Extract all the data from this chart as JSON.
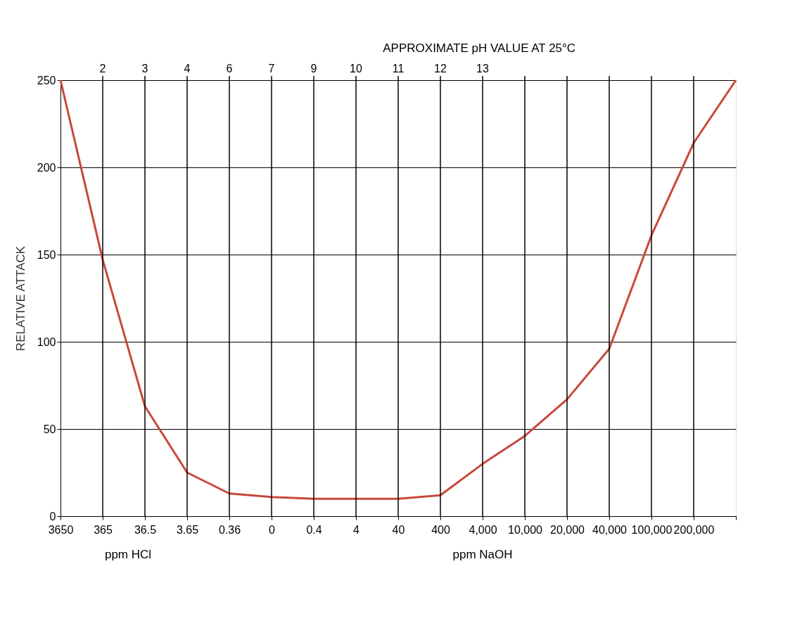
{
  "chart_data": {
    "type": "line",
    "ylabel": "RELATIVE ATTACK",
    "x2label": "APPROXIMATE pH VALUE AT 25°C",
    "categories": [
      "3650",
      "365",
      "36.5",
      "3.65",
      "0.36",
      "0",
      "0.4",
      "4",
      "40",
      "400",
      "4,000",
      "10,000",
      "20,000",
      "40,000",
      "100,000",
      "200,000",
      null
    ],
    "ref_lines": [
      {
        "axis": "x",
        "value": "365",
        "label": "2"
      },
      {
        "axis": "x",
        "value": "36.5",
        "label": "3"
      },
      {
        "axis": "x",
        "value": "3.65",
        "label": "4"
      },
      {
        "axis": "x",
        "value": "0.36",
        "label": "6"
      },
      {
        "axis": "x",
        "value": "0",
        "label": "7"
      },
      {
        "axis": "x",
        "value": "0.4",
        "label": "9"
      },
      {
        "axis": "x",
        "value": "4",
        "label": "10"
      },
      {
        "axis": "x",
        "value": "40",
        "label": "11"
      },
      {
        "axis": "x",
        "value": "400",
        "label": "12"
      },
      {
        "axis": "x",
        "value": "4,000",
        "label": "13"
      },
      {
        "axis": "x",
        "value": "10,000",
        "label": null
      },
      {
        "axis": "x",
        "value": "20,000",
        "label": null
      },
      {
        "axis": "x",
        "value": "40,000",
        "label": null
      },
      {
        "axis": "x",
        "value": "100,000",
        "label": null
      },
      {
        "axis": "x",
        "value": "200,000",
        "label": null
      }
    ],
    "series": [
      {
        "color": "#c8483a",
        "values": [
          250,
          147,
          63,
          25,
          13,
          11,
          10,
          10,
          10,
          12,
          30,
          46,
          67,
          96,
          161,
          214,
          250
        ]
      }
    ],
    "ylim": [
      0,
      250
    ],
    "yticks": [
      0,
      50,
      100,
      150,
      200,
      250
    ],
    "grid": "y",
    "marker": "none",
    "line_style": "solid",
    "annotations": [
      "ppm HCl",
      "ppm NaOH"
    ]
  }
}
